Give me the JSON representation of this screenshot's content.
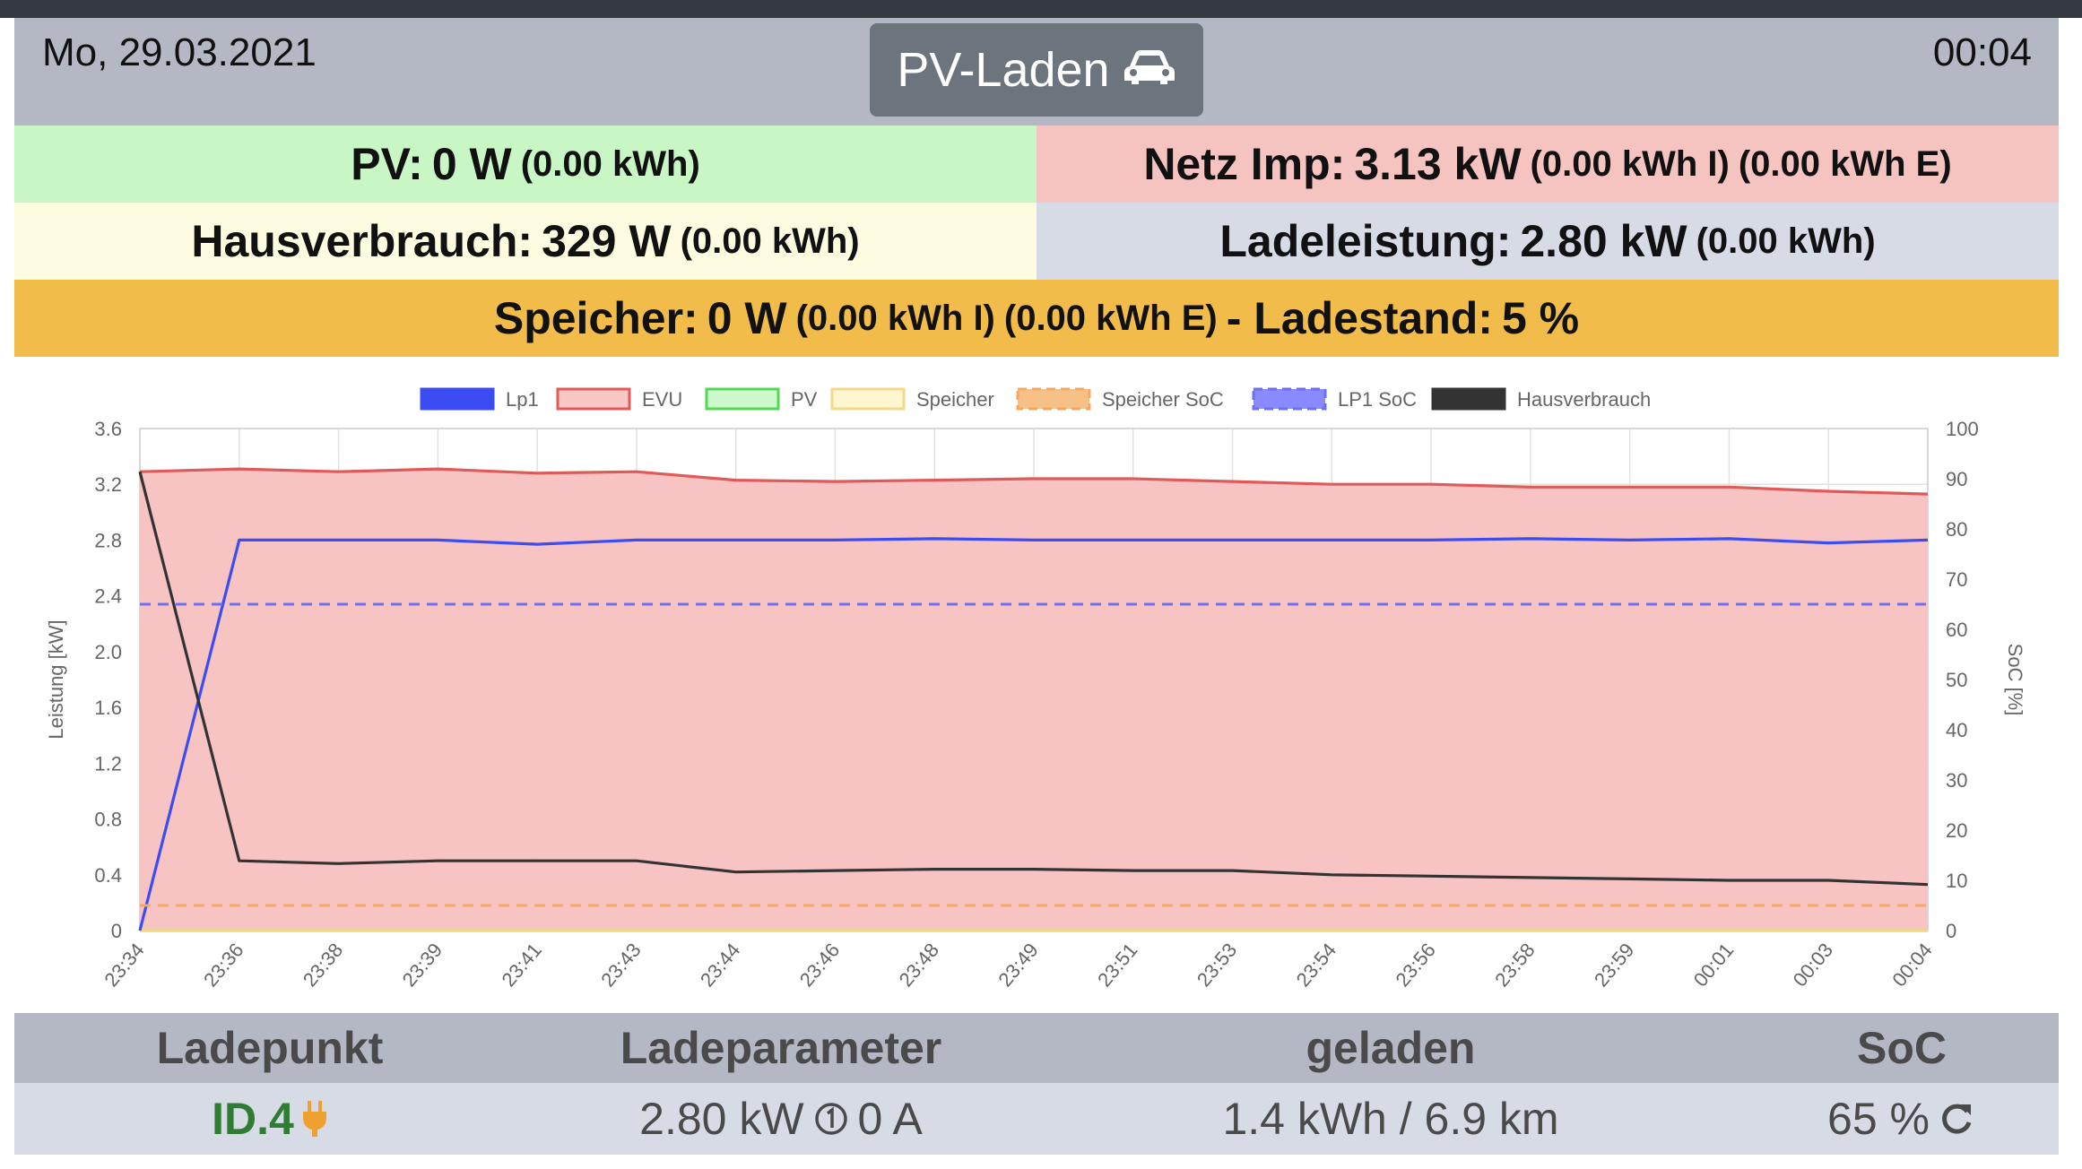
{
  "header": {
    "date": "Mo, 29.03.2021",
    "time": "00:04",
    "mode_label": "PV-Laden",
    "mode_icon": "car-icon"
  },
  "stats": {
    "pv": {
      "label": "PV:",
      "value": "0 W",
      "energy": "(0.00 kWh)",
      "color": "#c8f7c5"
    },
    "netz": {
      "label": "Netz Imp:",
      "value": "3.13 kW",
      "import": "(0.00 kWh I)",
      "export": "(0.00 kWh E)",
      "color": "#f5c4c1"
    },
    "haus": {
      "label": "Hausverbrauch:",
      "value": "329 W",
      "energy": "(0.00 kWh)",
      "color": "#fdfbe0"
    },
    "ladeleistung": {
      "label": "Ladeleistung:",
      "value": "2.80 kW",
      "energy": "(0.00 kWh)",
      "color": "#d6dbe6"
    },
    "speicher": {
      "label": "Speicher:",
      "value": "0 W",
      "import": "(0.00 kWh I)",
      "export": "(0.00 kWh E)",
      "soc_label": "- Ladestand:",
      "soc_value": "5 %",
      "color": "#f1bc4a"
    }
  },
  "chart_data": {
    "type": "line",
    "title": "",
    "xlabel": "",
    "ylabel": "Leistung [kW]",
    "y2label": "SoC [%]",
    "ylim": [
      0,
      3.6
    ],
    "y2lim": [
      0,
      100
    ],
    "yticks": [
      "0",
      "0.4",
      "0.8",
      "1.2",
      "1.6",
      "2.0",
      "2.4",
      "2.8",
      "3.2",
      "3.6"
    ],
    "y2ticks": [
      "0",
      "10",
      "20",
      "30",
      "40",
      "50",
      "60",
      "70",
      "80",
      "90",
      "100"
    ],
    "x": [
      "23:34",
      "23:36",
      "23:38",
      "23:39",
      "23:41",
      "23:43",
      "23:44",
      "23:46",
      "23:48",
      "23:49",
      "23:51",
      "23:53",
      "23:54",
      "23:56",
      "23:58",
      "23:59",
      "00:01",
      "00:03",
      "00:04"
    ],
    "grid": true,
    "legend_position": "top",
    "series": [
      {
        "name": "Lp1",
        "axis": "y",
        "color": "#3b4cf2",
        "fill": "#3b4cf2",
        "dash": false,
        "values": [
          0,
          2.8,
          2.8,
          2.8,
          2.77,
          2.8,
          2.8,
          2.8,
          2.81,
          2.8,
          2.8,
          2.8,
          2.8,
          2.8,
          2.81,
          2.8,
          2.81,
          2.78,
          2.8
        ]
      },
      {
        "name": "EVU",
        "axis": "y",
        "color": "#e05a5a",
        "fill": "#f7c1c0",
        "dash": false,
        "values": [
          3.29,
          3.31,
          3.29,
          3.31,
          3.28,
          3.29,
          3.23,
          3.22,
          3.23,
          3.24,
          3.24,
          3.22,
          3.2,
          3.2,
          3.18,
          3.18,
          3.18,
          3.15,
          3.13
        ]
      },
      {
        "name": "PV",
        "axis": "y",
        "color": "#55d655",
        "fill": "#c8f7c5",
        "dash": false,
        "values": [
          0,
          0,
          0,
          0,
          0,
          0,
          0,
          0,
          0,
          0,
          0,
          0,
          0,
          0,
          0,
          0,
          0,
          0,
          0
        ]
      },
      {
        "name": "Speicher",
        "axis": "y",
        "color": "#f2d98a",
        "fill": "#fdf5c9",
        "dash": false,
        "values": [
          0,
          0,
          0,
          0,
          0,
          0,
          0,
          0,
          0,
          0,
          0,
          0,
          0,
          0,
          0,
          0,
          0,
          0,
          0
        ]
      },
      {
        "name": "Speicher SoC",
        "axis": "y2",
        "color": "#f5a862",
        "fill": "#f5b97a",
        "dash": true,
        "values": [
          5,
          5,
          5,
          5,
          5,
          5,
          5,
          5,
          5,
          5,
          5,
          5,
          5,
          5,
          5,
          5,
          5,
          5,
          5
        ]
      },
      {
        "name": "LP1 SoC",
        "axis": "y2",
        "color": "#6f6ff0",
        "fill": "#7d7dff",
        "dash": true,
        "values": [
          65,
          65,
          65,
          65,
          65,
          65,
          65,
          65,
          65,
          65,
          65,
          65,
          65,
          65,
          65,
          65,
          65,
          65,
          65
        ]
      },
      {
        "name": "Hausverbrauch",
        "axis": "y",
        "color": "#333333",
        "fill": "#333333",
        "dash": false,
        "values": [
          3.29,
          0.5,
          0.48,
          0.5,
          0.5,
          0.5,
          0.42,
          0.43,
          0.44,
          0.44,
          0.43,
          0.43,
          0.4,
          0.39,
          0.38,
          0.37,
          0.36,
          0.36,
          0.33
        ]
      }
    ]
  },
  "footer": {
    "headers": [
      "Ladepunkt",
      "Ladeparameter",
      "geladen",
      "SoC"
    ],
    "lp_name": "ID.4",
    "lp_icon": "plug-icon",
    "power": "2.80 kW",
    "phase_icon": "circled-one-icon",
    "current": "0 A",
    "charged": "1.4 kWh / 6.9 km",
    "soc": "65 %",
    "soc_icon": "refresh-icon"
  }
}
